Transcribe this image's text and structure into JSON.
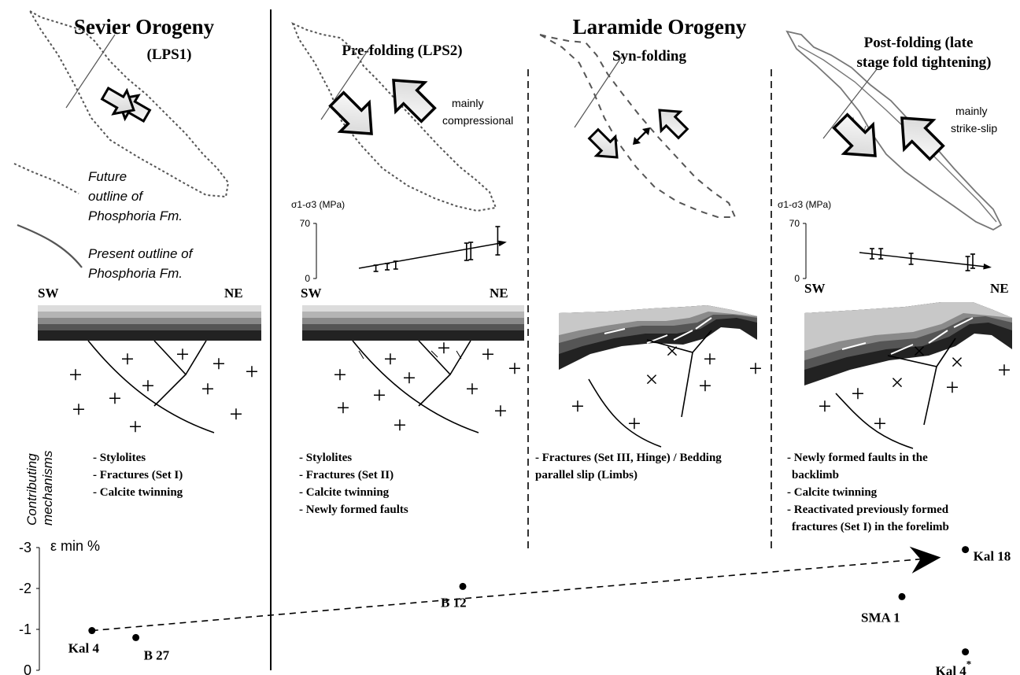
{
  "titles": {
    "sevier": "Sevier Orogeny",
    "laramide": "Laramide Orogeny"
  },
  "stages": [
    {
      "id": "lps1",
      "label": "(LPS1)"
    },
    {
      "id": "lps2",
      "label": "Pre-folding (LPS2)"
    },
    {
      "id": "syn",
      "label": "Syn-folding"
    },
    {
      "id": "post",
      "label_lines": [
        "Post-folding (late",
        "stage fold tightening)"
      ]
    }
  ],
  "legend": {
    "future_outline": [
      "Future",
      "outline of",
      "Phosphoria Fm."
    ],
    "present_outline": [
      "Present outline of",
      "Phosphoria Fm."
    ]
  },
  "stress_notes": {
    "lps2": [
      "mainly",
      "compressional"
    ],
    "post": [
      "mainly",
      "strike-slip"
    ]
  },
  "directions": {
    "sw": "SW",
    "ne": "NE"
  },
  "side_label": [
    "Contributing",
    "mechanisms"
  ],
  "mechanisms": {
    "lps1": [
      "- Stylolites",
      "- Fractures (Set I)",
      "- Calcite twinning"
    ],
    "lps2": [
      "- Stylolites",
      "- Fractures (Set II)",
      "- Calcite twinning",
      "- Newly formed faults"
    ],
    "syn": [
      "- Fractures (Set III, Hinge) / Bedding",
      "parallel slip (Limbs)"
    ],
    "post": [
      "- Newly formed faults in the",
      "backlimb",
      "- Calcite twinning",
      "- Reactivated previously formed",
      "fractures (Set I) in the forelimb"
    ]
  },
  "chart_data": [
    {
      "id": "differential-stress-lps2",
      "type": "scatter",
      "ylabel": "σ1-σ3 (MPa)",
      "yticks": [
        0,
        70
      ],
      "ylim": [
        0,
        70
      ],
      "x_range": [
        0,
        1
      ],
      "trend": [
        [
          0.0,
          13
        ],
        [
          1.0,
          45
        ]
      ],
      "points": [
        {
          "x": 0.12,
          "y": 13,
          "lo": 9,
          "hi": 17
        },
        {
          "x": 0.2,
          "y": 15,
          "lo": 11,
          "hi": 19
        },
        {
          "x": 0.26,
          "y": 17,
          "lo": 12,
          "hi": 22
        },
        {
          "x": 0.76,
          "y": 34,
          "lo": 23,
          "hi": 45
        },
        {
          "x": 0.79,
          "y": 35,
          "lo": 24,
          "hi": 46
        },
        {
          "x": 0.98,
          "y": 47,
          "lo": 30,
          "hi": 66
        }
      ]
    },
    {
      "id": "differential-stress-post",
      "type": "scatter",
      "ylabel": "σ1-σ3 (MPa)",
      "yticks": [
        0,
        70
      ],
      "ylim": [
        0,
        70
      ],
      "x_range": [
        0,
        1
      ],
      "trend": [
        [
          0.0,
          33
        ],
        [
          1.0,
          15
        ]
      ],
      "points": [
        {
          "x": 0.1,
          "y": 31,
          "lo": 25,
          "hi": 38
        },
        {
          "x": 0.17,
          "y": 31,
          "lo": 25,
          "hi": 38
        },
        {
          "x": 0.41,
          "y": 25,
          "lo": 18,
          "hi": 32
        },
        {
          "x": 0.86,
          "y": 18,
          "lo": 10,
          "hi": 28
        },
        {
          "x": 0.9,
          "y": 21,
          "lo": 13,
          "hi": 31
        }
      ]
    },
    {
      "id": "minimum-strain",
      "type": "scatter",
      "ylabel": "ε min %",
      "yticks": [
        0,
        -1,
        -2,
        -3
      ],
      "ylim": [
        0,
        -3
      ],
      "x_range": [
        0,
        1
      ],
      "points": [
        {
          "label": "Kal 4",
          "x": 0.07,
          "y": -0.97
        },
        {
          "label": "B 27",
          "x": 0.115,
          "y": -0.8
        },
        {
          "label": "B 12",
          "x": 0.45,
          "y": -2.05
        },
        {
          "label": "SMA 1",
          "x": 0.9,
          "y": -1.8
        },
        {
          "label": "Kal 18",
          "x": 0.965,
          "y": -2.95
        },
        {
          "label": "Kal 4",
          "superscript": "*",
          "x": 0.965,
          "y": -0.45
        }
      ],
      "trend": [
        [
          0.07,
          -0.97
        ],
        [
          0.935,
          -2.75
        ]
      ]
    }
  ]
}
